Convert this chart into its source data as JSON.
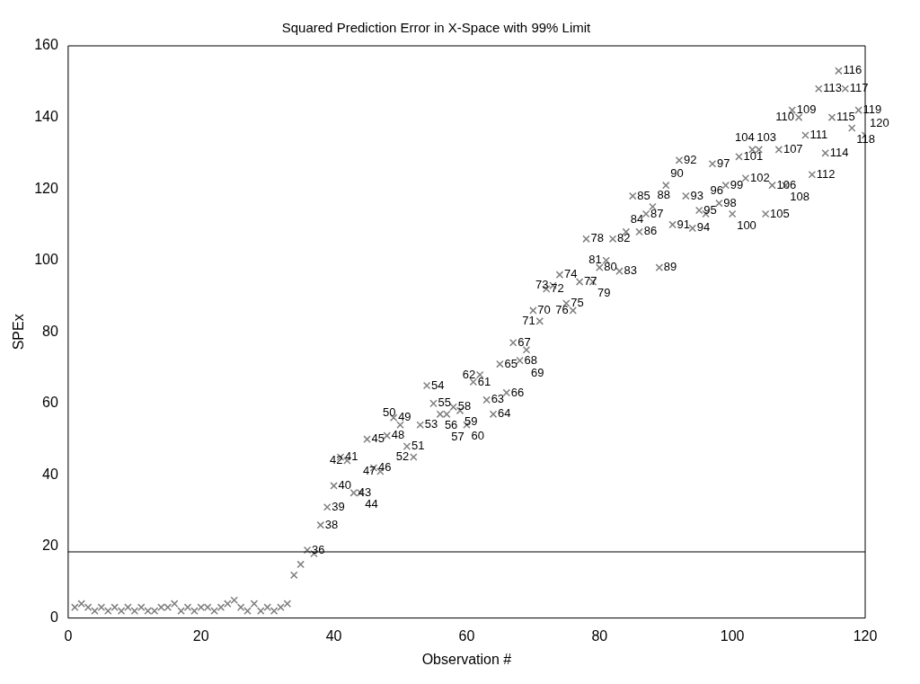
{
  "chart_data": {
    "type": "scatter",
    "title": "Squared Prediction Error in X-Space with 99% Limit",
    "xlabel": "Observation #",
    "ylabel": "SPEx",
    "x": [
      1,
      2,
      3,
      4,
      5,
      6,
      7,
      8,
      9,
      10,
      11,
      12,
      13,
      14,
      15,
      16,
      17,
      18,
      19,
      20,
      21,
      22,
      23,
      24,
      25,
      26,
      27,
      28,
      29,
      30,
      31,
      32,
      33,
      34,
      35,
      36,
      37,
      38,
      39,
      40,
      41,
      42,
      43,
      44,
      45,
      46,
      47,
      48,
      49,
      50,
      51,
      52,
      53,
      54,
      55,
      56,
      57,
      58,
      59,
      60,
      61,
      62,
      63,
      64,
      65,
      66,
      67,
      68,
      69,
      70,
      71,
      72,
      73,
      74,
      75,
      76,
      77,
      78,
      79,
      80,
      81,
      82,
      83,
      84,
      85,
      86,
      87,
      88,
      89,
      90,
      91,
      92,
      93,
      94,
      95,
      96,
      97,
      98,
      99,
      100,
      101,
      102,
      103,
      104,
      105,
      106,
      107,
      108,
      109,
      110,
      111,
      112,
      113,
      114,
      115,
      116,
      117,
      118,
      119,
      120
    ],
    "series": [
      {
        "color": "#808080",
        "values": [
          3,
          4,
          3,
          2,
          3,
          2,
          3,
          2,
          3,
          2,
          3,
          2,
          2,
          3,
          3,
          4,
          2,
          3,
          2,
          3,
          3,
          2,
          3,
          4,
          5,
          3,
          2,
          4,
          2,
          3,
          2,
          3,
          4,
          12,
          15,
          19,
          18,
          26,
          31,
          37,
          45,
          44,
          35,
          35,
          50,
          42,
          41,
          51,
          56,
          54,
          48,
          45,
          54,
          65,
          60,
          57,
          57,
          59,
          58,
          54,
          66,
          68,
          61,
          57,
          71,
          63,
          77,
          72,
          75,
          86,
          83,
          92,
          93,
          96,
          88,
          86,
          94,
          106,
          94,
          98,
          100,
          106,
          97,
          108,
          118,
          108,
          113,
          115,
          98,
          121,
          110,
          128,
          118,
          109,
          114,
          113,
          127,
          116,
          121,
          113,
          129,
          123,
          131,
          131,
          113,
          121,
          131,
          121,
          142,
          140,
          135,
          124,
          148,
          130,
          140,
          153,
          148,
          137,
          142,
          135
        ]
      }
    ],
    "annotations": [
      {
        "text": "36",
        "x": 36,
        "y": 19
      },
      {
        "text": "38",
        "x": 38,
        "y": 26
      },
      {
        "text": "39",
        "x": 39,
        "y": 31
      },
      {
        "text": "40",
        "x": 40,
        "y": 37
      },
      {
        "text": "41",
        "x": 41,
        "y": 45
      },
      {
        "text": "42",
        "x": 42,
        "y": 44
      },
      {
        "text": "43",
        "x": 43,
        "y": 35
      },
      {
        "text": "44",
        "x": 44,
        "y": 35
      },
      {
        "text": "45",
        "x": 45,
        "y": 50
      },
      {
        "text": "46",
        "x": 46,
        "y": 42
      },
      {
        "text": "47",
        "x": 47,
        "y": 41
      },
      {
        "text": "48",
        "x": 48,
        "y": 51
      },
      {
        "text": "49",
        "x": 49,
        "y": 56
      },
      {
        "text": "50",
        "x": 50,
        "y": 54
      },
      {
        "text": "51",
        "x": 51,
        "y": 48
      },
      {
        "text": "52",
        "x": 52,
        "y": 45
      },
      {
        "text": "53",
        "x": 53,
        "y": 54
      },
      {
        "text": "54",
        "x": 54,
        "y": 65
      },
      {
        "text": "55",
        "x": 55,
        "y": 60
      },
      {
        "text": "56",
        "x": 56,
        "y": 57
      },
      {
        "text": "57",
        "x": 57,
        "y": 57
      },
      {
        "text": "58",
        "x": 58,
        "y": 59
      },
      {
        "text": "59",
        "x": 59,
        "y": 58
      },
      {
        "text": "60",
        "x": 60,
        "y": 54
      },
      {
        "text": "61",
        "x": 61,
        "y": 66
      },
      {
        "text": "62",
        "x": 62,
        "y": 68
      },
      {
        "text": "63",
        "x": 63,
        "y": 61
      },
      {
        "text": "64",
        "x": 64,
        "y": 57
      },
      {
        "text": "65",
        "x": 65,
        "y": 71
      },
      {
        "text": "66",
        "x": 66,
        "y": 63
      },
      {
        "text": "67",
        "x": 67,
        "y": 77
      },
      {
        "text": "68",
        "x": 68,
        "y": 72
      },
      {
        "text": "69",
        "x": 69,
        "y": 75
      },
      {
        "text": "70",
        "x": 70,
        "y": 86
      },
      {
        "text": "71",
        "x": 71,
        "y": 83
      },
      {
        "text": "72",
        "x": 72,
        "y": 92
      },
      {
        "text": "73",
        "x": 73,
        "y": 93
      },
      {
        "text": "74",
        "x": 74,
        "y": 96
      },
      {
        "text": "75",
        "x": 75,
        "y": 88
      },
      {
        "text": "76",
        "x": 76,
        "y": 86
      },
      {
        "text": "77",
        "x": 77,
        "y": 94
      },
      {
        "text": "78",
        "x": 78,
        "y": 106
      },
      {
        "text": "79",
        "x": 79,
        "y": 94
      },
      {
        "text": "80",
        "x": 80,
        "y": 98
      },
      {
        "text": "81",
        "x": 81,
        "y": 100
      },
      {
        "text": "82",
        "x": 82,
        "y": 106
      },
      {
        "text": "83",
        "x": 83,
        "y": 97
      },
      {
        "text": "84",
        "x": 84,
        "y": 108
      },
      {
        "text": "85",
        "x": 85,
        "y": 118
      },
      {
        "text": "86",
        "x": 86,
        "y": 108
      },
      {
        "text": "87",
        "x": 87,
        "y": 113
      },
      {
        "text": "88",
        "x": 88,
        "y": 115
      },
      {
        "text": "89",
        "x": 89,
        "y": 98
      },
      {
        "text": "90",
        "x": 90,
        "y": 121
      },
      {
        "text": "91",
        "x": 91,
        "y": 110
      },
      {
        "text": "92",
        "x": 92,
        "y": 128
      },
      {
        "text": "93",
        "x": 93,
        "y": 118
      },
      {
        "text": "94",
        "x": 94,
        "y": 109
      },
      {
        "text": "95",
        "x": 95,
        "y": 114
      },
      {
        "text": "96",
        "x": 96,
        "y": 113
      },
      {
        "text": "97",
        "x": 97,
        "y": 127
      },
      {
        "text": "98",
        "x": 98,
        "y": 116
      },
      {
        "text": "99",
        "x": 99,
        "y": 121
      },
      {
        "text": "100",
        "x": 100,
        "y": 113
      },
      {
        "text": "101",
        "x": 101,
        "y": 129
      },
      {
        "text": "102",
        "x": 102,
        "y": 123
      },
      {
        "text": "103",
        "x": 103,
        "y": 131
      },
      {
        "text": "104",
        "x": 104,
        "y": 131
      },
      {
        "text": "105",
        "x": 105,
        "y": 113
      },
      {
        "text": "106",
        "x": 106,
        "y": 121
      },
      {
        "text": "107",
        "x": 107,
        "y": 131
      },
      {
        "text": "108",
        "x": 108,
        "y": 121
      },
      {
        "text": "109",
        "x": 109,
        "y": 142
      },
      {
        "text": "110",
        "x": 110,
        "y": 140
      },
      {
        "text": "111",
        "x": 111,
        "y": 135
      },
      {
        "text": "112",
        "x": 112,
        "y": 124
      },
      {
        "text": "113",
        "x": 113,
        "y": 148
      },
      {
        "text": "114",
        "x": 114,
        "y": 130
      },
      {
        "text": "115",
        "x": 115,
        "y": 140
      },
      {
        "text": "116",
        "x": 116,
        "y": 153
      },
      {
        "text": "117",
        "x": 117,
        "y": 148
      },
      {
        "text": "118",
        "x": 118,
        "y": 137
      },
      {
        "text": "119",
        "x": 119,
        "y": 142
      },
      {
        "text": "120",
        "x": 120,
        "y": 135
      }
    ],
    "marker": "cross",
    "xlim": [
      0,
      120
    ],
    "xticks": [
      0,
      20,
      40,
      60,
      80,
      100,
      120
    ],
    "ylim": [
      0,
      160
    ],
    "yticks": [
      0,
      20,
      40,
      60,
      80,
      100,
      120,
      140,
      160
    ],
    "ref_lines": [
      {
        "axis": "y",
        "value": 18.5,
        "color": "#000000"
      }
    ],
    "grid": false,
    "legend": false
  }
}
